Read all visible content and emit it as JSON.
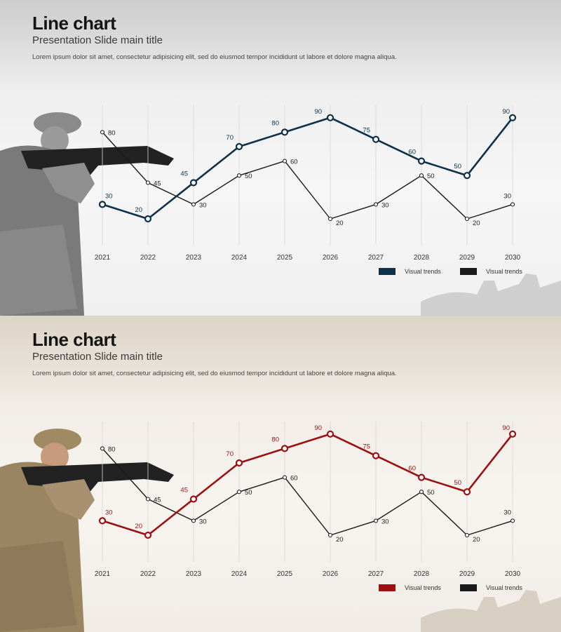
{
  "slides": [
    {
      "title": "Line chart",
      "subtitle": "Presentation Slide main title",
      "body": "Lorem ipsum dolor sit amet, consectetur adipisicing elit, sed do eiusmod tempor incididunt ut labore et dolore magna aliqua."
    },
    {
      "title": "Line chart",
      "subtitle": "Presentation Slide main title",
      "body": "Lorem ipsum dolor sit amet, consectetur adipisicing elit, sed do eiusmod tempor incididunt ut labore et dolore magna aliqua."
    }
  ],
  "chart_data": [
    {
      "type": "line",
      "categories": [
        "2021",
        "2022",
        "2023",
        "2024",
        "2025",
        "2026",
        "2027",
        "2028",
        "2029",
        "2030"
      ],
      "series": [
        {
          "name": "Visual trends",
          "values": [
            30,
            20,
            45,
            70,
            80,
            90,
            75,
            60,
            50,
            90
          ],
          "color": "#0e3049"
        },
        {
          "name": "Visual trends",
          "values": [
            80,
            45,
            30,
            50,
            60,
            20,
            30,
            50,
            20,
            30
          ],
          "color": "#1a1a1a"
        }
      ],
      "grid_x": true,
      "legend": "bottom-right"
    },
    {
      "type": "line",
      "categories": [
        "2021",
        "2022",
        "2023",
        "2024",
        "2025",
        "2026",
        "2027",
        "2028",
        "2029",
        "2030"
      ],
      "series": [
        {
          "name": "Visual trends",
          "values": [
            30,
            20,
            45,
            70,
            80,
            90,
            75,
            60,
            50,
            90
          ],
          "color": "#9b1010"
        },
        {
          "name": "Visual trends",
          "values": [
            80,
            45,
            30,
            50,
            60,
            20,
            30,
            50,
            20,
            30
          ],
          "color": "#1a1a1a"
        }
      ],
      "grid_x": true,
      "legend": "bottom-right"
    }
  ]
}
